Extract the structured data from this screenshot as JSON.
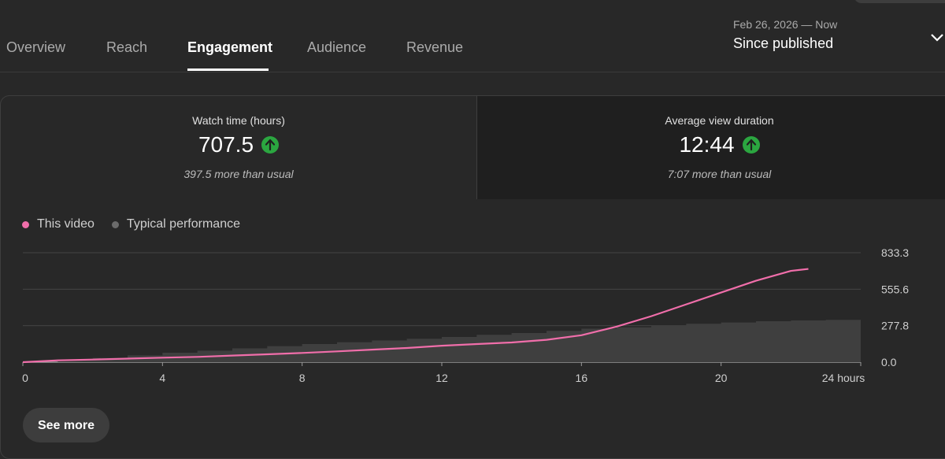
{
  "tabs": [
    {
      "label": "Overview",
      "active": false
    },
    {
      "label": "Reach",
      "active": false
    },
    {
      "label": "Engagement",
      "active": true
    },
    {
      "label": "Audience",
      "active": false
    },
    {
      "label": "Revenue",
      "active": false
    }
  ],
  "date_picker": {
    "range": "Feb 26, 2026 — Now",
    "label": "Since published",
    "icon": "chevron-down-icon"
  },
  "metrics": [
    {
      "title": "Watch time (hours)",
      "value": "707.5",
      "comparison": "397.5 more than usual",
      "trend_icon": "arrow-up-icon",
      "trend_color": "#2ba640"
    },
    {
      "title": "Average view duration",
      "value": "12:44",
      "comparison": "7:07 more than usual",
      "trend_icon": "arrow-up-icon",
      "trend_color": "#2ba640"
    }
  ],
  "legend": [
    {
      "label": "This video",
      "color": "#f06eaa"
    },
    {
      "label": "Typical performance",
      "color": "#6b6b6b"
    }
  ],
  "see_more_label": "See more",
  "chart_data": {
    "type": "line",
    "x_tick_labels": [
      "0",
      "4",
      "8",
      "12",
      "16",
      "20",
      "24 hours"
    ],
    "x_ticks": [
      0,
      4,
      8,
      12,
      16,
      20,
      24
    ],
    "y_tick_labels": [
      "833.3",
      "555.6",
      "277.8",
      "0.0"
    ],
    "y_ticks": [
      833.3,
      555.6,
      277.8,
      0
    ],
    "xlim": [
      0,
      24
    ],
    "ylim": [
      0,
      833.3
    ],
    "grid": true,
    "series": [
      {
        "name": "This video",
        "color": "#f06eaa",
        "kind": "line",
        "x": [
          0,
          1,
          2,
          3,
          4,
          5,
          6,
          7,
          8,
          9,
          10,
          11,
          12,
          13,
          14,
          15,
          16,
          17,
          18,
          19,
          20,
          21,
          22,
          22.5
        ],
        "y": [
          0,
          14,
          20,
          27,
          34,
          40,
          50,
          60,
          70,
          82,
          95,
          108,
          125,
          138,
          150,
          170,
          205,
          270,
          350,
          440,
          530,
          620,
          695,
          710
        ]
      },
      {
        "name": "Typical performance",
        "color": "#3f3f3f",
        "kind": "area",
        "x": [
          0,
          1,
          2,
          3,
          4,
          5,
          6,
          7,
          8,
          9,
          10,
          11,
          12,
          13,
          14,
          15,
          16,
          17,
          18,
          19,
          20,
          21,
          22,
          23,
          24
        ],
        "y": [
          0,
          20,
          32,
          52,
          72,
          88,
          105,
          122,
          138,
          152,
          165,
          178,
          192,
          208,
          222,
          238,
          255,
          265,
          278,
          292,
          302,
          312,
          318,
          322,
          325
        ]
      }
    ]
  }
}
